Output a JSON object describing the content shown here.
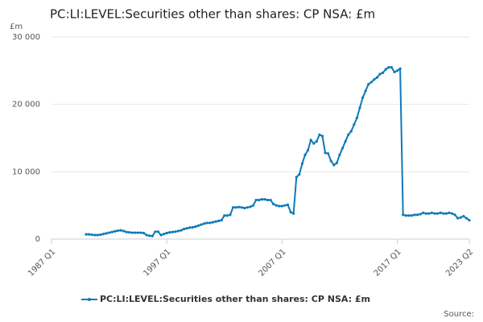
{
  "chart_data": {
    "type": "line",
    "title": "PC:LI:LEVEL:Securities other than shares: CP NSA: £m",
    "y_label": "£m",
    "source": "Source:",
    "categories": [
      "1987 Q1",
      null,
      null,
      null,
      null,
      null,
      null,
      null,
      null,
      null,
      null,
      null,
      null,
      null,
      null,
      null,
      null,
      null,
      null,
      null,
      null,
      null,
      null,
      null,
      null,
      null,
      null,
      null,
      null,
      null,
      null,
      null,
      null,
      null,
      null,
      null,
      null,
      null,
      null,
      null,
      "1997 Q1",
      null,
      null,
      null,
      null,
      null,
      null,
      null,
      null,
      null,
      null,
      null,
      null,
      null,
      null,
      null,
      null,
      null,
      null,
      null,
      null,
      null,
      null,
      null,
      null,
      null,
      null,
      null,
      null,
      null,
      null,
      null,
      null,
      null,
      null,
      null,
      null,
      null,
      null,
      null,
      "2007 Q1",
      null,
      null,
      null,
      null,
      null,
      null,
      null,
      null,
      null,
      null,
      null,
      null,
      null,
      null,
      null,
      null,
      null,
      null,
      null,
      null,
      null,
      null,
      null,
      null,
      null,
      null,
      null,
      null,
      null,
      null,
      null,
      null,
      null,
      null,
      null,
      null,
      null,
      null,
      null,
      "2017 Q1",
      null,
      null,
      null,
      null,
      null,
      null,
      null,
      null,
      null,
      null,
      null,
      null,
      null,
      null,
      null,
      null,
      null,
      null,
      null,
      null,
      null,
      null,
      null,
      null,
      "2023 Q2"
    ],
    "series": [
      {
        "name": "PC:LI:LEVEL:Securities other than shares: CP NSA: £m",
        "color": "#0f7ab8",
        "values": [
          null,
          null,
          null,
          null,
          null,
          null,
          null,
          null,
          null,
          null,
          null,
          null,
          700,
          700,
          650,
          600,
          600,
          650,
          750,
          850,
          950,
          1050,
          1150,
          1250,
          1300,
          1200,
          1050,
          1000,
          950,
          950,
          950,
          950,
          900,
          600,
          500,
          450,
          1100,
          1100,
          600,
          750,
          900,
          1000,
          1050,
          1100,
          1200,
          1300,
          1500,
          1600,
          1700,
          1750,
          1850,
          2000,
          2150,
          2300,
          2400,
          2400,
          2500,
          2600,
          2700,
          2800,
          3500,
          3500,
          3600,
          4700,
          4700,
          4750,
          4700,
          4600,
          4700,
          4800,
          5000,
          5800,
          5800,
          5900,
          5900,
          5800,
          5800,
          5200,
          5000,
          4900,
          4900,
          5000,
          5100,
          4000,
          3800,
          9200,
          9600,
          11200,
          12500,
          13200,
          14700,
          14200,
          14500,
          15500,
          15300,
          12800,
          12700,
          11600,
          11000,
          11300,
          12500,
          13500,
          14500,
          15500,
          16000,
          17000,
          18000,
          19500,
          21000,
          22000,
          23000,
          23300,
          23700,
          24000,
          24500,
          24700,
          25200,
          25500,
          25500,
          24800,
          25000,
          25300,
          3600,
          3500,
          3500,
          3500,
          3600,
          3600,
          3700,
          3900,
          3800,
          3800,
          3900,
          3800,
          3800,
          3900,
          3800,
          3800,
          3900,
          3800,
          3600,
          3100,
          3200,
          3400,
          3100,
          2800
        ]
      }
    ],
    "ylim": [
      0,
      30000
    ],
    "yticks": [
      0,
      {
        "value": 10000,
        "label": "10 000"
      },
      {
        "value": 20000,
        "label": "20 000"
      },
      {
        "value": 30000,
        "label": "30 000"
      }
    ],
    "grid": true
  }
}
